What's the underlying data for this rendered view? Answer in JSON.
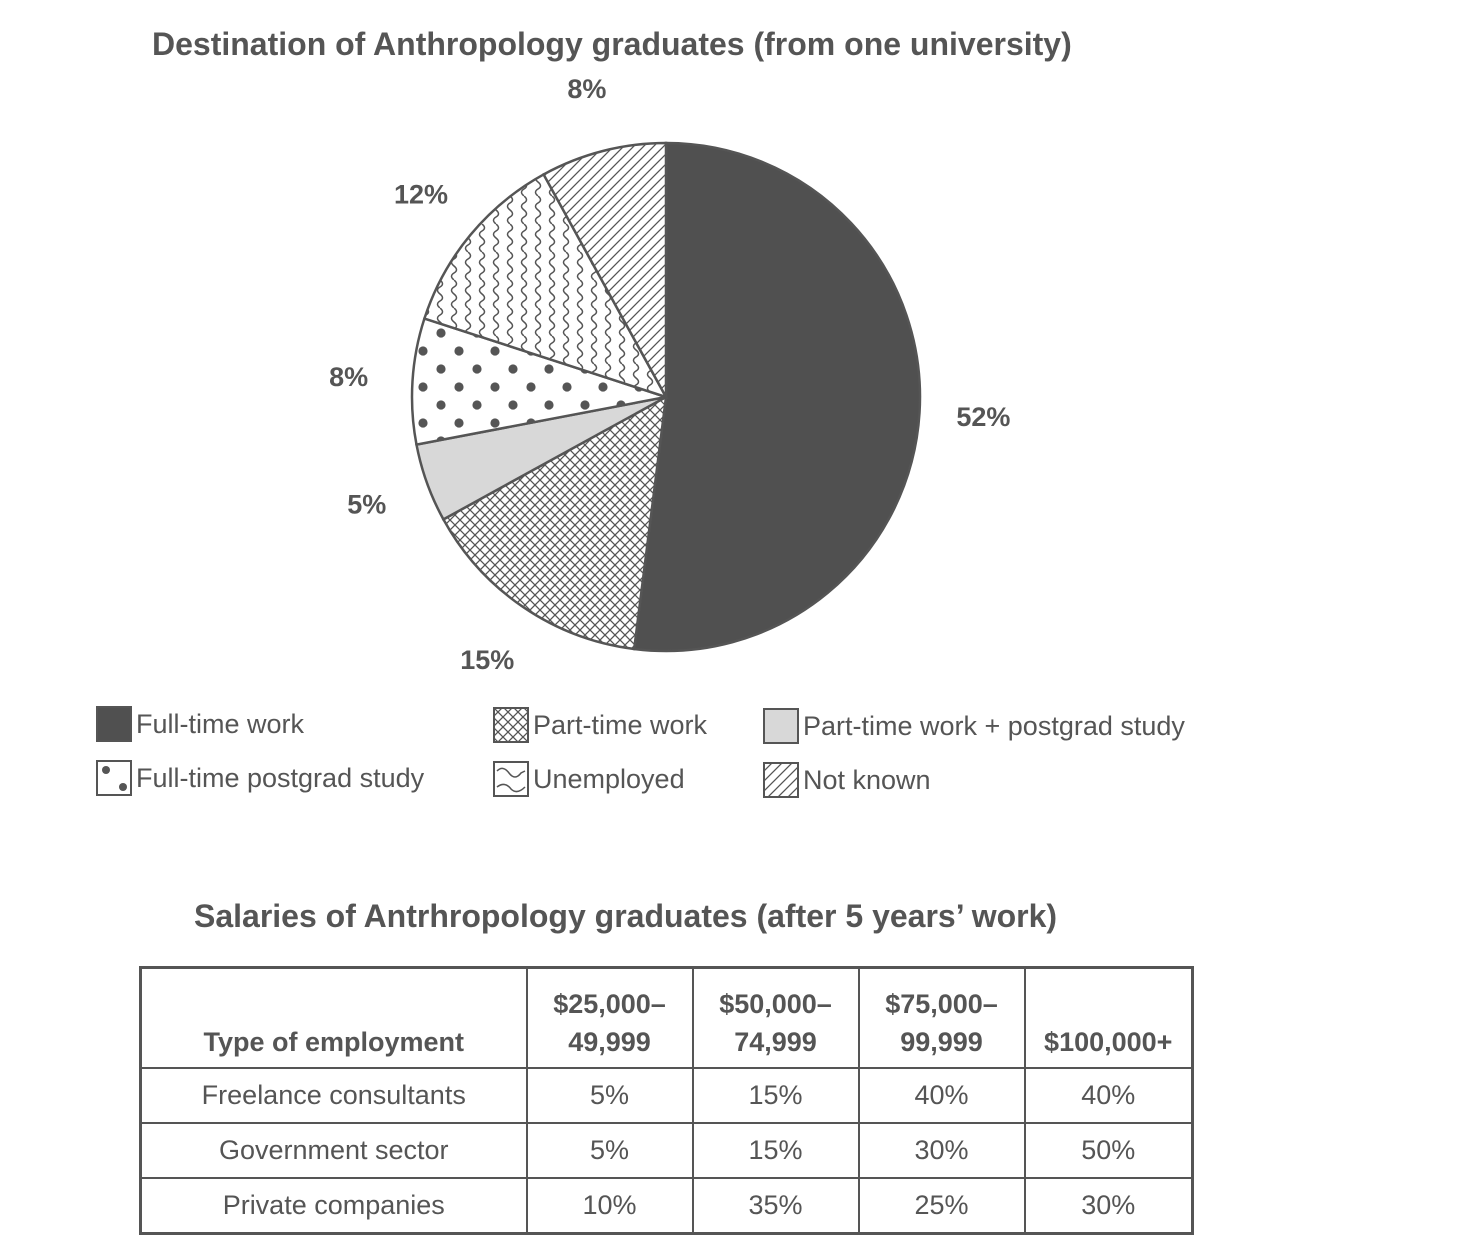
{
  "pie": {
    "title": "Destination of Anthropology graduates (from one university)"
  },
  "table": {
    "title": "Salaries of Antrhropology graduates (after 5 years’ work)",
    "columns": [
      {
        "line1": "Type of employment",
        "line2": ""
      },
      {
        "line1": "$25,000–",
        "line2": "49,999"
      },
      {
        "line1": "$50,000–",
        "line2": "74,999"
      },
      {
        "line1": "$75,000–",
        "line2": "99,999"
      },
      {
        "line1": "$100,000+",
        "line2": ""
      }
    ],
    "rows": [
      {
        "type": "Freelance consultants",
        "c1": "5%",
        "c2": "15%",
        "c3": "40%",
        "c4": "40%"
      },
      {
        "type": "Government sector",
        "c1": "5%",
        "c2": "15%",
        "c3": "30%",
        "c4": "50%"
      },
      {
        "type": "Private companies",
        "c1": "10%",
        "c2": "35%",
        "c3": "25%",
        "c4": "30%"
      }
    ]
  },
  "chart_data": [
    {
      "type": "pie",
      "title": "Destination of Anthropology graduates (from one university)",
      "slices": [
        {
          "name": "Full-time work",
          "value": 52,
          "label": "52%",
          "pattern": "solid-dark",
          "color": "#505050"
        },
        {
          "name": "Part-time work",
          "value": 15,
          "label": "15%",
          "pattern": "crosshatch",
          "color": "#555555"
        },
        {
          "name": "Part-time work + postgrad study",
          "value": 5,
          "label": "5%",
          "pattern": "solid-light",
          "color": "#d8d8d8"
        },
        {
          "name": "Full-time postgrad study",
          "value": 8,
          "label": "8%",
          "pattern": "dots",
          "color": "#555555"
        },
        {
          "name": "Unemployed",
          "value": 12,
          "label": "12%",
          "pattern": "wavy",
          "color": "#555555"
        },
        {
          "name": "Not known",
          "value": 8,
          "label": "8%",
          "pattern": "diagonal",
          "color": "#555555"
        }
      ],
      "legend": [
        {
          "label": "Full-time work",
          "pattern": "solid-dark"
        },
        {
          "label": "Part-time work",
          "pattern": "crosshatch"
        },
        {
          "label": "Part-time work + postgrad study",
          "pattern": "solid-light"
        },
        {
          "label": "Full-time postgrad study",
          "pattern": "dots"
        },
        {
          "label": "Unemployed",
          "pattern": "wavy"
        },
        {
          "label": "Not known",
          "pattern": "diagonal"
        }
      ],
      "legend_position": "bottom"
    },
    {
      "type": "table",
      "title": "Salaries of Antrhropology graduates (after 5 years’ work)",
      "columns": [
        "Type of employment",
        "$25,000–49,999",
        "$50,000–74,999",
        "$75,000–99,999",
        "$100,000+"
      ],
      "rows": [
        [
          "Freelance consultants",
          "5%",
          "15%",
          "40%",
          "40%"
        ],
        [
          "Government sector",
          "5%",
          "15%",
          "30%",
          "50%"
        ],
        [
          "Private companies",
          "10%",
          "35%",
          "25%",
          "30%"
        ]
      ]
    }
  ]
}
